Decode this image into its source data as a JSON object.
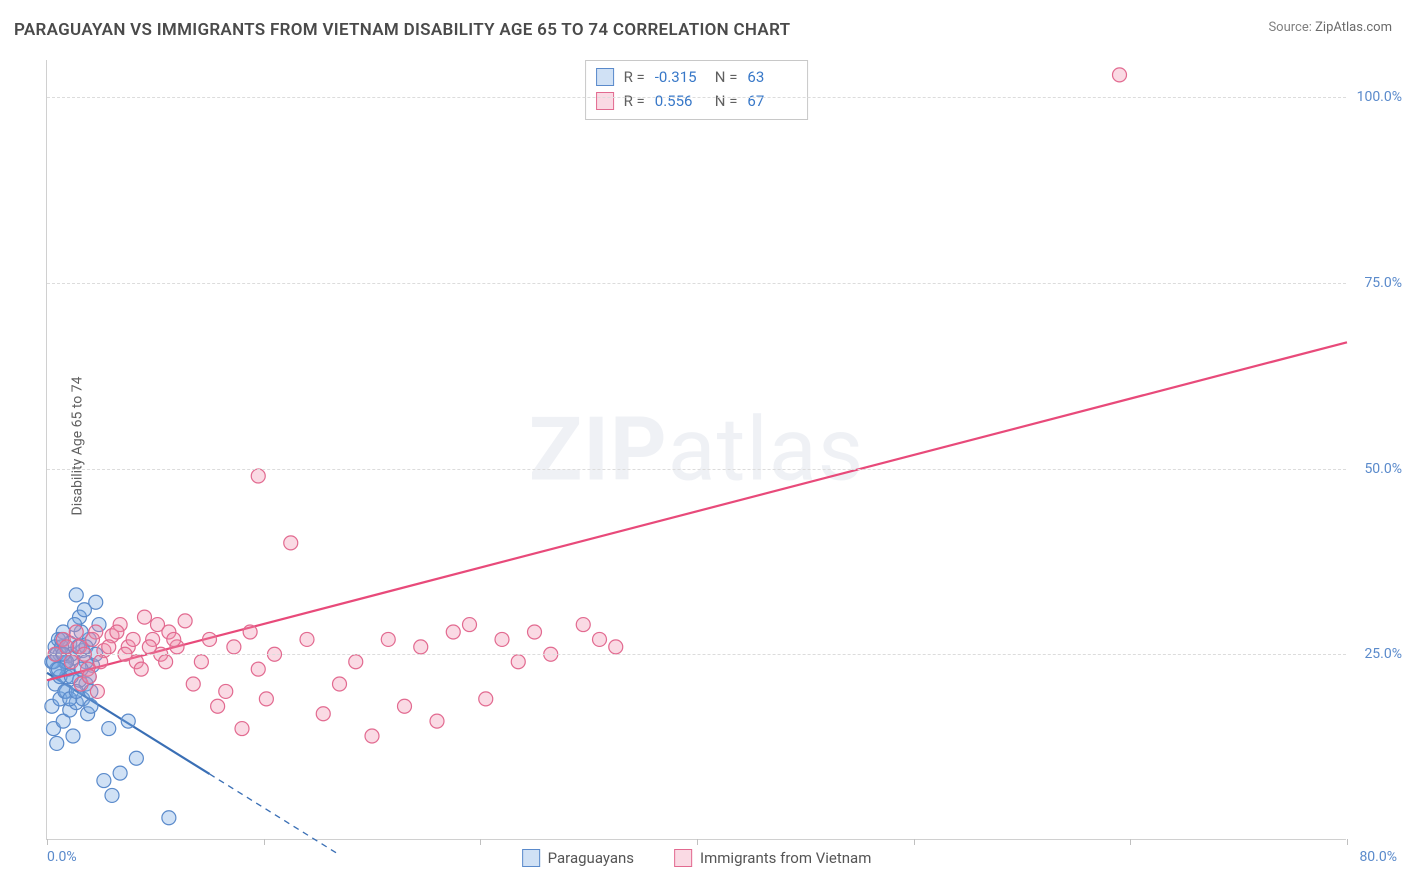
{
  "title": "PARAGUAYAN VS IMMIGRANTS FROM VIETNAM DISABILITY AGE 65 TO 74 CORRELATION CHART",
  "source_label": "Source:",
  "source_value": "ZipAtlas.com",
  "y_axis_label": "Disability Age 65 to 74",
  "watermark_bold": "ZIP",
  "watermark_rest": "atlas",
  "chart": {
    "type": "scatter",
    "xlim": [
      0,
      80
    ],
    "ylim": [
      0,
      105
    ],
    "x_ticks": [
      0,
      13.33,
      26.67,
      40,
      53.33,
      66.67,
      80
    ],
    "x_tick_labels_shown": {
      "0": "0.0%",
      "80": "80.0%"
    },
    "y_ticks": [
      25,
      50,
      75,
      100
    ],
    "y_tick_labels": [
      "25.0%",
      "50.0%",
      "75.0%",
      "100.0%"
    ],
    "grid_color": "#dcdcdc",
    "axis_color": "#d0d0d0",
    "tick_label_color": "#5a8acb",
    "background_color": "#ffffff",
    "point_radius": 7,
    "point_stroke_width": 1.2,
    "line_width": 2.2,
    "series": [
      {
        "name": "Paraguayans",
        "fill": "rgba(120,170,225,0.35)",
        "stroke": "#5a8acb",
        "line_color": "#3a6fb5",
        "line_dash_after_x": 10,
        "regression": {
          "x1": 0,
          "y1": 22.5,
          "x2": 18,
          "y2": -2
        },
        "R": "-0.315",
        "N": "63",
        "points": [
          [
            0.3,
            24
          ],
          [
            0.5,
            26
          ],
          [
            0.6,
            23
          ],
          [
            0.8,
            25
          ],
          [
            1.0,
            28
          ],
          [
            1.2,
            22
          ],
          [
            1.4,
            26.5
          ],
          [
            1.6,
            24.5
          ],
          [
            1.8,
            33
          ],
          [
            2.0,
            30
          ],
          [
            2.2,
            25.5
          ],
          [
            2.4,
            21
          ],
          [
            2.6,
            27
          ],
          [
            2.8,
            23.5
          ],
          [
            3.0,
            32
          ],
          [
            3.2,
            29
          ],
          [
            0.3,
            18
          ],
          [
            0.4,
            15
          ],
          [
            0.6,
            13
          ],
          [
            0.8,
            19
          ],
          [
            1.0,
            16
          ],
          [
            1.2,
            20
          ],
          [
            1.4,
            17.5
          ],
          [
            1.6,
            14
          ],
          [
            1.8,
            18.5
          ],
          [
            2.0,
            21.5
          ],
          [
            2.2,
            19
          ],
          [
            2.4,
            24
          ],
          [
            2.6,
            22
          ],
          [
            1.5,
            25
          ],
          [
            0.7,
            27
          ],
          [
            1.1,
            24
          ],
          [
            0.9,
            26
          ],
          [
            1.3,
            23
          ],
          [
            1.9,
            26
          ],
          [
            2.1,
            28
          ],
          [
            2.5,
            17
          ],
          [
            2.7,
            20
          ],
          [
            3.5,
            8
          ],
          [
            4.0,
            6
          ],
          [
            4.5,
            9
          ],
          [
            3.8,
            15
          ],
          [
            5.0,
            16
          ],
          [
            5.5,
            11
          ],
          [
            7.5,
            3
          ],
          [
            2.3,
            31
          ],
          [
            1.7,
            29
          ],
          [
            0.5,
            21
          ],
          [
            0.8,
            22
          ],
          [
            1.1,
            20
          ],
          [
            1.4,
            19
          ],
          [
            0.6,
            25
          ],
          [
            0.9,
            27
          ],
          [
            1.2,
            24
          ],
          [
            1.5,
            22
          ],
          [
            1.8,
            20
          ],
          [
            2.1,
            23
          ],
          [
            2.4,
            26
          ],
          [
            2.7,
            18
          ],
          [
            3.0,
            25
          ],
          [
            0.4,
            24
          ],
          [
            0.7,
            23
          ],
          [
            1.0,
            25
          ]
        ]
      },
      {
        "name": "Immigrants from Vietnam",
        "fill": "rgba(240,140,170,0.32)",
        "stroke": "#e26a90",
        "line_color": "#e84a7a",
        "line_dash_after_x": 999,
        "regression": {
          "x1": 0,
          "y1": 21.5,
          "x2": 80,
          "y2": 67
        },
        "R": "0.556",
        "N": "67",
        "points": [
          [
            0.5,
            25
          ],
          [
            1.0,
            27
          ],
          [
            1.5,
            24
          ],
          [
            2.0,
            26
          ],
          [
            2.5,
            23
          ],
          [
            3.0,
            28
          ],
          [
            3.5,
            25.5
          ],
          [
            4.0,
            27.5
          ],
          [
            4.5,
            29
          ],
          [
            5.0,
            26
          ],
          [
            5.5,
            24
          ],
          [
            6.0,
            30
          ],
          [
            6.5,
            27
          ],
          [
            7.0,
            25
          ],
          [
            7.5,
            28
          ],
          [
            8.0,
            26
          ],
          [
            8.5,
            29.5
          ],
          [
            9.0,
            21
          ],
          [
            9.5,
            24
          ],
          [
            10.0,
            27
          ],
          [
            10.5,
            18
          ],
          [
            11.0,
            20
          ],
          [
            11.5,
            26
          ],
          [
            12.0,
            15
          ],
          [
            12.5,
            28
          ],
          [
            13.0,
            23
          ],
          [
            13.5,
            19
          ],
          [
            14.0,
            25
          ],
          [
            15.0,
            40
          ],
          [
            16.0,
            27
          ],
          [
            17.0,
            17
          ],
          [
            18.0,
            21
          ],
          [
            19.0,
            24
          ],
          [
            20.0,
            14
          ],
          [
            21.0,
            27
          ],
          [
            22.0,
            18
          ],
          [
            23.0,
            26
          ],
          [
            24.0,
            16
          ],
          [
            25.0,
            28
          ],
          [
            26.0,
            29
          ],
          [
            27.0,
            19
          ],
          [
            28.0,
            27
          ],
          [
            29.0,
            24
          ],
          [
            30.0,
            28
          ],
          [
            31.0,
            25
          ],
          [
            33.0,
            29
          ],
          [
            34.0,
            27
          ],
          [
            35.0,
            26
          ],
          [
            13.0,
            49
          ],
          [
            1.2,
            26
          ],
          [
            1.8,
            28
          ],
          [
            2.3,
            25
          ],
          [
            2.8,
            27
          ],
          [
            3.3,
            24
          ],
          [
            3.8,
            26
          ],
          [
            4.3,
            28
          ],
          [
            4.8,
            25
          ],
          [
            5.3,
            27
          ],
          [
            5.8,
            23
          ],
          [
            6.3,
            26
          ],
          [
            6.8,
            29
          ],
          [
            7.3,
            24
          ],
          [
            7.8,
            27
          ],
          [
            66.0,
            103
          ],
          [
            2.1,
            21
          ],
          [
            2.6,
            22
          ],
          [
            3.1,
            20
          ]
        ]
      }
    ]
  },
  "stats_legend": {
    "R_label": "R =",
    "N_label": "N ="
  },
  "bottom_legend": {
    "items": [
      "Paraguayans",
      "Immigrants from Vietnam"
    ]
  }
}
